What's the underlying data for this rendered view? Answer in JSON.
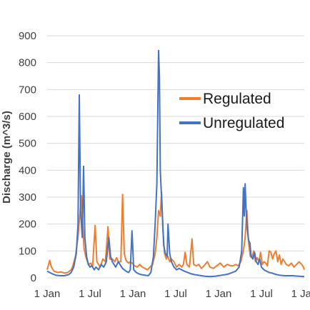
{
  "chart_data": {
    "type": "line",
    "ylabel": "Discharge (m^3/s)",
    "xlabel": "",
    "ylim": [
      0,
      900
    ],
    "yticks": [
      0,
      100,
      200,
      300,
      400,
      500,
      600,
      700,
      800,
      900
    ],
    "xticks": [
      "1 Jan",
      "1 Jul",
      "1 Jan",
      "1 Jul",
      "1 Jan",
      "1 Jul",
      "1 Jan"
    ],
    "grid": "horizontal",
    "legend_position": "right",
    "x_unit": "months since first 1 Jan",
    "series": [
      {
        "name": "Regulated",
        "color": "#ED7D31",
        "points": [
          [
            0.0,
            30
          ],
          [
            0.3,
            65
          ],
          [
            0.5,
            40
          ],
          [
            0.8,
            25
          ],
          [
            1.2,
            20
          ],
          [
            1.6,
            22
          ],
          [
            2.0,
            18
          ],
          [
            2.4,
            20
          ],
          [
            2.8,
            30
          ],
          [
            3.0,
            45
          ],
          [
            3.3,
            80
          ],
          [
            3.6,
            150
          ],
          [
            3.8,
            230
          ],
          [
            4.0,
            305
          ],
          [
            4.15,
            200
          ],
          [
            4.3,
            110
          ],
          [
            4.5,
            80
          ],
          [
            4.7,
            60
          ],
          [
            4.9,
            50
          ],
          [
            5.1,
            55
          ],
          [
            5.3,
            40
          ],
          [
            5.6,
            195
          ],
          [
            5.8,
            60
          ],
          [
            6.0,
            50
          ],
          [
            6.2,
            40
          ],
          [
            6.5,
            70
          ],
          [
            6.8,
            60
          ],
          [
            7.1,
            190
          ],
          [
            7.3,
            70
          ],
          [
            7.6,
            70
          ],
          [
            7.9,
            60
          ],
          [
            8.1,
            75
          ],
          [
            8.3,
            60
          ],
          [
            8.6,
            60
          ],
          [
            8.8,
            310
          ],
          [
            9.0,
            90
          ],
          [
            9.2,
            65
          ],
          [
            9.5,
            55
          ],
          [
            9.7,
            60
          ],
          [
            9.9,
            55
          ],
          [
            10.2,
            45
          ],
          [
            10.5,
            40
          ],
          [
            10.8,
            50
          ],
          [
            11.1,
            40
          ],
          [
            11.4,
            35
          ],
          [
            11.7,
            30
          ],
          [
            12.0,
            40
          ],
          [
            12.3,
            50
          ],
          [
            12.6,
            90
          ],
          [
            12.8,
            150
          ],
          [
            13.0,
            250
          ],
          [
            13.2,
            230
          ],
          [
            13.35,
            320
          ],
          [
            13.5,
            180
          ],
          [
            13.7,
            90
          ],
          [
            13.9,
            70
          ],
          [
            14.1,
            80
          ],
          [
            14.3,
            60
          ],
          [
            14.5,
            70
          ],
          [
            14.8,
            60
          ],
          [
            15.1,
            40
          ],
          [
            15.4,
            50
          ],
          [
            15.7,
            40
          ],
          [
            15.9,
            50
          ],
          [
            16.1,
            95
          ],
          [
            16.3,
            50
          ],
          [
            16.6,
            40
          ],
          [
            16.9,
            145
          ],
          [
            17.1,
            50
          ],
          [
            17.4,
            45
          ],
          [
            17.7,
            50
          ],
          [
            18.0,
            35
          ],
          [
            18.3,
            45
          ],
          [
            18.7,
            60
          ],
          [
            19.0,
            40
          ],
          [
            19.4,
            35
          ],
          [
            19.8,
            45
          ],
          [
            20.2,
            55
          ],
          [
            20.6,
            40
          ],
          [
            21.0,
            50
          ],
          [
            21.4,
            45
          ],
          [
            21.7,
            45
          ],
          [
            22.0,
            50
          ],
          [
            22.3,
            45
          ],
          [
            22.6,
            60
          ],
          [
            22.9,
            100
          ],
          [
            23.1,
            150
          ],
          [
            23.3,
            250
          ],
          [
            23.5,
            130
          ],
          [
            23.7,
            80
          ],
          [
            23.9,
            75
          ],
          [
            24.1,
            100
          ],
          [
            24.3,
            60
          ],
          [
            24.5,
            75
          ],
          [
            24.7,
            60
          ],
          [
            24.9,
            95
          ],
          [
            25.1,
            50
          ],
          [
            25.3,
            60
          ],
          [
            25.5,
            55
          ],
          [
            25.7,
            45
          ],
          [
            25.9,
            100
          ],
          [
            26.1,
            95
          ],
          [
            26.3,
            70
          ],
          [
            26.5,
            90
          ],
          [
            26.7,
            100
          ],
          [
            26.9,
            60
          ],
          [
            27.1,
            85
          ],
          [
            27.3,
            50
          ],
          [
            27.5,
            70
          ],
          [
            27.7,
            60
          ],
          [
            27.9,
            50
          ],
          [
            28.2,
            45
          ],
          [
            28.5,
            55
          ],
          [
            28.8,
            40
          ],
          [
            29.1,
            50
          ],
          [
            29.4,
            60
          ],
          [
            29.7,
            50
          ],
          [
            29.9,
            40
          ],
          [
            30.0,
            30
          ]
        ]
      },
      {
        "name": "Unregulated",
        "color": "#4472C4",
        "points": [
          [
            0.0,
            25
          ],
          [
            0.3,
            20
          ],
          [
            0.6,
            15
          ],
          [
            1.0,
            10
          ],
          [
            1.5,
            8
          ],
          [
            2.0,
            8
          ],
          [
            2.5,
            12
          ],
          [
            2.8,
            20
          ],
          [
            3.1,
            40
          ],
          [
            3.4,
            90
          ],
          [
            3.6,
            200
          ],
          [
            3.75,
            680
          ],
          [
            3.9,
            250
          ],
          [
            4.1,
            150
          ],
          [
            4.25,
            415
          ],
          [
            4.4,
            150
          ],
          [
            4.6,
            80
          ],
          [
            4.8,
            50
          ],
          [
            5.0,
            40
          ],
          [
            5.2,
            45
          ],
          [
            5.5,
            30
          ],
          [
            5.7,
            40
          ],
          [
            6.0,
            30
          ],
          [
            6.3,
            50
          ],
          [
            6.6,
            40
          ],
          [
            6.9,
            60
          ],
          [
            7.2,
            150
          ],
          [
            7.4,
            80
          ],
          [
            7.6,
            60
          ],
          [
            7.8,
            50
          ],
          [
            8.0,
            40
          ],
          [
            8.3,
            60
          ],
          [
            8.6,
            45
          ],
          [
            8.8,
            35
          ],
          [
            9.0,
            30
          ],
          [
            9.2,
            25
          ],
          [
            9.5,
            20
          ],
          [
            9.7,
            30
          ],
          [
            9.9,
            175
          ],
          [
            10.1,
            30
          ],
          [
            10.4,
            20
          ],
          [
            10.7,
            15
          ],
          [
            11.0,
            12
          ],
          [
            11.4,
            10
          ],
          [
            11.8,
            8
          ],
          [
            12.1,
            20
          ],
          [
            12.4,
            80
          ],
          [
            12.6,
            200
          ],
          [
            12.8,
            350
          ],
          [
            13.0,
            845
          ],
          [
            13.1,
            750
          ],
          [
            13.2,
            400
          ],
          [
            13.3,
            330
          ],
          [
            13.45,
            230
          ],
          [
            13.6,
            120
          ],
          [
            13.8,
            90
          ],
          [
            14.0,
            80
          ],
          [
            14.1,
            200
          ],
          [
            14.3,
            90
          ],
          [
            14.5,
            60
          ],
          [
            14.8,
            40
          ],
          [
            15.1,
            30
          ],
          [
            15.4,
            35
          ],
          [
            15.7,
            30
          ],
          [
            16.0,
            25
          ],
          [
            16.4,
            20
          ],
          [
            16.8,
            15
          ],
          [
            17.2,
            12
          ],
          [
            17.6,
            10
          ],
          [
            18.0,
            8
          ],
          [
            18.4,
            6
          ],
          [
            18.8,
            5
          ],
          [
            19.2,
            5
          ],
          [
            19.6,
            6
          ],
          [
            20.0,
            8
          ],
          [
            20.4,
            10
          ],
          [
            20.8,
            12
          ],
          [
            21.2,
            15
          ],
          [
            21.6,
            20
          ],
          [
            22.0,
            25
          ],
          [
            22.4,
            40
          ],
          [
            22.7,
            100
          ],
          [
            22.9,
            335
          ],
          [
            23.0,
            230
          ],
          [
            23.1,
            350
          ],
          [
            23.2,
            260
          ],
          [
            23.35,
            180
          ],
          [
            23.5,
            140
          ],
          [
            23.65,
            130
          ],
          [
            23.8,
            80
          ],
          [
            24.0,
            70
          ],
          [
            24.2,
            95
          ],
          [
            24.4,
            60
          ],
          [
            24.6,
            50
          ],
          [
            24.8,
            70
          ],
          [
            25.0,
            40
          ],
          [
            25.3,
            30
          ],
          [
            25.6,
            25
          ],
          [
            25.9,
            20
          ],
          [
            26.2,
            18
          ],
          [
            26.5,
            15
          ],
          [
            26.8,
            12
          ],
          [
            27.1,
            10
          ],
          [
            27.4,
            9
          ],
          [
            27.8,
            8
          ],
          [
            28.2,
            8
          ],
          [
            28.6,
            8
          ],
          [
            29.0,
            7
          ],
          [
            29.4,
            6
          ],
          [
            29.8,
            5
          ],
          [
            30.0,
            5
          ]
        ]
      }
    ]
  }
}
